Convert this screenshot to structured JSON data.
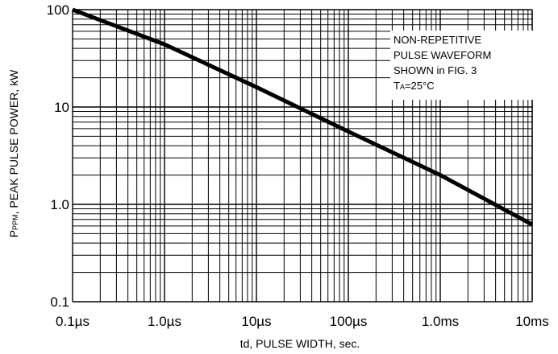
{
  "chart_data": {
    "type": "line",
    "x_scale": "log",
    "y_scale": "log",
    "xlabel": "td, PULSE WIDTH, sec.",
    "ylabel_main": "P",
    "ylabel_sub": "PPM",
    "ylabel_rest": ", PEAK PULSE POWER, kW",
    "x_ticks": [
      {
        "value": 1e-07,
        "label": "0.1µs"
      },
      {
        "value": 1e-06,
        "label": "1.0µs"
      },
      {
        "value": 1e-05,
        "label": "10µs"
      },
      {
        "value": 0.0001,
        "label": "100µs"
      },
      {
        "value": 0.001,
        "label": "1.0ms"
      },
      {
        "value": 0.01,
        "label": "10ms"
      }
    ],
    "y_ticks": [
      {
        "value": 0.1,
        "label": "0.1"
      },
      {
        "value": 1,
        "label": "1.0"
      },
      {
        "value": 10,
        "label": "10"
      },
      {
        "value": 100,
        "label": "100"
      }
    ],
    "xlim": [
      1e-07,
      0.01
    ],
    "ylim": [
      0.1,
      100
    ],
    "grid": true,
    "series": [
      {
        "color": "#000000",
        "points": [
          {
            "x": 1e-07,
            "y": 100
          },
          {
            "x": 1e-06,
            "y": 44
          },
          {
            "x": 1e-05,
            "y": 16
          },
          {
            "x": 0.0001,
            "y": 5.6
          },
          {
            "x": 0.001,
            "y": 2.0
          },
          {
            "x": 0.01,
            "y": 0.62
          }
        ]
      }
    ],
    "annotation": {
      "lines": [
        "NON-REPETITIVE",
        "PULSE WAVEFORM",
        "SHOWN in FIG. 3"
      ],
      "temp_main": "T",
      "temp_sub": "A",
      "temp_rest": "=25°C"
    }
  }
}
